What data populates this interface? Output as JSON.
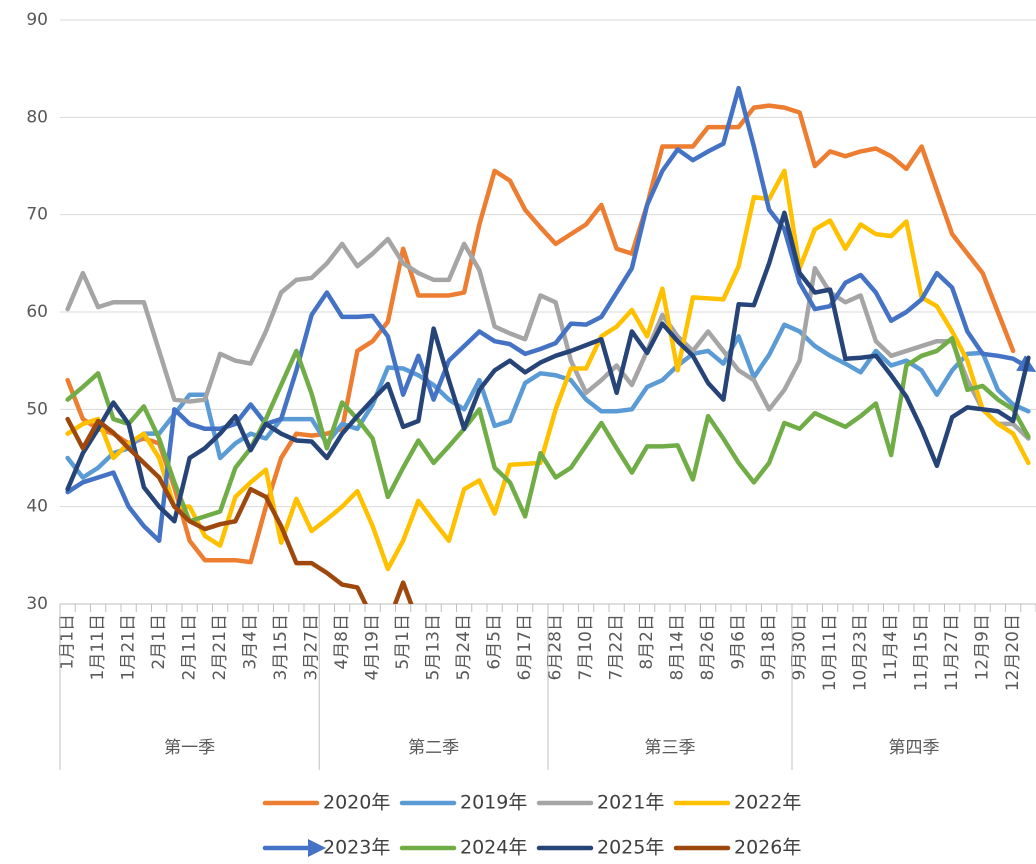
{
  "chart_data": {
    "type": "line",
    "categories": [
      "1月1日",
      null,
      "1月11日",
      null,
      "1月21日",
      null,
      "2月1日",
      null,
      "2月11日",
      null,
      "2月21日",
      null,
      "3月4日",
      null,
      "3月15日",
      null,
      "3月27日",
      null,
      "4月8日",
      null,
      "4月19日",
      null,
      "5月1日",
      null,
      "5月13日",
      null,
      "5月24日",
      null,
      "6月5日",
      null,
      "6月17日",
      null,
      "6月28日",
      null,
      "7月10日",
      null,
      "7月22日",
      null,
      "8月2日",
      null,
      "8月14日",
      null,
      "8月26日",
      null,
      "9月6日",
      null,
      "9月18日",
      null,
      "9月30日",
      null,
      "10月11日",
      null,
      "10月23日",
      null,
      "11月4日",
      null,
      "11月15日",
      null,
      "11月27日",
      null,
      "12月9日",
      null,
      "12月20日",
      null
    ],
    "groups": [
      {
        "label": "第一季",
        "span": 17
      },
      {
        "label": "第二季",
        "span": 15
      },
      {
        "label": "第三季",
        "span": 16
      },
      {
        "label": "第四季",
        "span": 16
      }
    ],
    "ylim": [
      30,
      90
    ],
    "yticks": [
      30,
      40,
      50,
      60,
      70,
      80,
      90
    ],
    "grid": true,
    "legend": "bottom",
    "series": [
      {
        "name": "2020年",
        "color": "#ED7D31",
        "values": [
          53,
          49,
          48,
          47.5,
          46.5,
          47,
          46.5,
          42,
          36.5,
          34.5,
          34.5,
          34.5,
          34.3,
          40,
          45,
          47.5,
          47.3,
          47.5,
          48,
          56,
          57,
          59,
          66.5,
          61.7,
          61.7,
          61.7,
          62,
          69,
          74.5,
          73.5,
          70.5,
          68.7,
          67,
          68,
          69,
          71,
          66.5,
          66,
          71,
          77,
          77,
          77,
          79,
          79,
          79,
          81,
          81.2,
          81,
          80.5,
          75,
          76.5,
          76,
          76.5,
          76.8,
          76,
          74.7,
          77,
          72.5,
          68,
          66,
          64,
          60,
          56,
          null
        ]
      },
      {
        "name": "2019年",
        "color": "#5B9BD5",
        "values": [
          45,
          43,
          44,
          45.5,
          46,
          47.5,
          47.5,
          49.5,
          51.5,
          51.5,
          45,
          46.5,
          47.5,
          47,
          49,
          49,
          49,
          46.5,
          48.5,
          48,
          50.5,
          54.3,
          54.2,
          53.5,
          52.5,
          51,
          50,
          53,
          48.3,
          48.8,
          52.7,
          53.7,
          53.5,
          53,
          51,
          49.8,
          49.8,
          50,
          52.3,
          53,
          54.5,
          55.7,
          56,
          54.7,
          57.5,
          53.3,
          55.6,
          58.7,
          58,
          56.5,
          55.5,
          54.7,
          53.8,
          56,
          54.5,
          55,
          54,
          51.5,
          54,
          55.7,
          55.8,
          52,
          50.5,
          49.8
        ]
      },
      {
        "name": "2021年",
        "color": "#A5A5A5",
        "values": [
          60.3,
          64,
          60.5,
          61,
          61,
          61,
          56,
          51,
          50.8,
          51,
          55.7,
          55,
          54.7,
          58,
          62,
          63.3,
          63.5,
          65,
          67,
          64.7,
          66,
          67.5,
          65,
          64,
          63.3,
          63.3,
          67,
          64.3,
          58.5,
          57.8,
          57.2,
          61.7,
          61,
          55,
          51.7,
          53,
          54.5,
          52.5,
          56,
          59.7,
          57.5,
          56,
          58,
          56,
          54,
          53,
          50,
          52,
          55,
          64.5,
          62,
          61,
          61.7,
          57,
          55.5,
          56,
          56.5,
          57,
          57,
          53,
          50,
          48.5,
          48.5,
          47
        ]
      },
      {
        "name": "2022年",
        "color": "#FFC000",
        "values": [
          47.5,
          48.5,
          49,
          45,
          46.5,
          47.5,
          45,
          40,
          40,
          37,
          36,
          41,
          42.5,
          43.8,
          36.3,
          40.8,
          37.5,
          38.7,
          40,
          41.6,
          38,
          33.6,
          36.5,
          40.6,
          38.5,
          36.5,
          41.8,
          42.7,
          39.3,
          44.3,
          44.4,
          44.5,
          50,
          54.2,
          54.2,
          57.5,
          58.5,
          60.2,
          57.5,
          62.4,
          54,
          61.5,
          61.4,
          61.3,
          64.7,
          71.8,
          71.6,
          74.5,
          64.5,
          68.5,
          69.4,
          66.5,
          69,
          68,
          67.8,
          69.3,
          61.5,
          60.6,
          58,
          55,
          50,
          48.5,
          47.5,
          44.5
        ]
      },
      {
        "name": "2023年",
        "color": "#4472C4",
        "arrow": true,
        "values": [
          41.5,
          42.5,
          43,
          43.5,
          40,
          38,
          36.5,
          50,
          48.5,
          48,
          48,
          48.5,
          50.5,
          48.5,
          49,
          54,
          59.7,
          62,
          59.5,
          59.5,
          59.6,
          57.5,
          51.5,
          55.5,
          51,
          55,
          56.5,
          58,
          57,
          56.7,
          55.7,
          56.2,
          56.8,
          58.8,
          58.7,
          59.5,
          62,
          64.5,
          71,
          74.5,
          76.7,
          75.6,
          76.5,
          77.3,
          83,
          77,
          70.5,
          68.5,
          63,
          60.3,
          60.6,
          63,
          63.8,
          62,
          59.1,
          60,
          61.3,
          64,
          62.5,
          58,
          55.7,
          55.5,
          55.2,
          54.3
        ]
      },
      {
        "name": "2024年",
        "color": "#70AD47",
        "values": [
          51,
          52.3,
          53.7,
          49,
          48.5,
          50.3,
          47,
          42.5,
          38.5,
          39,
          39.5,
          44,
          46,
          49,
          52.5,
          56,
          51.6,
          46,
          50.7,
          49,
          47,
          41,
          44,
          46.8,
          44.5,
          46.2,
          48,
          50,
          44,
          42.5,
          39,
          45.5,
          43,
          44,
          46.3,
          48.6,
          46,
          43.5,
          46.2,
          46.2,
          46.3,
          42.8,
          49.3,
          47,
          44.5,
          42.5,
          44.5,
          48.6,
          48,
          49.6,
          48.9,
          48.2,
          49.3,
          50.6,
          45.3,
          54.5,
          55.5,
          56,
          57.3,
          52,
          52.4,
          51,
          50,
          47.2
        ]
      },
      {
        "name": "2025年",
        "color": "#264478",
        "values": [
          41.8,
          45.5,
          48,
          50.7,
          48.5,
          42,
          40,
          38.5,
          45,
          46,
          47.5,
          49.3,
          45.8,
          48.5,
          47.5,
          46.8,
          46.7,
          45,
          47.5,
          49.3,
          51,
          52.6,
          48.2,
          48.8,
          58.3,
          53,
          48,
          52,
          54,
          55,
          53.8,
          54.8,
          55.5,
          56,
          56.6,
          57.2,
          51.7,
          58,
          55.8,
          58.8,
          57,
          55.5,
          52.7,
          51,
          60.8,
          60.7,
          65,
          70.2,
          64,
          62,
          62.3,
          55.2,
          55.3,
          55.5,
          53.5,
          51.3,
          48,
          44.2,
          49.2,
          50.2,
          50,
          49.8,
          48.8,
          55.3
        ]
      },
      {
        "name": "2026年",
        "color": "#9E480E",
        "values": [
          49,
          46,
          48.8,
          47.6,
          46,
          44.5,
          43,
          40,
          38.5,
          37.7,
          38.2,
          38.5,
          41.8,
          41,
          38,
          34.2,
          34.2,
          33.2,
          32,
          31.7,
          28.5,
          28,
          32.2,
          28,
          null,
          null,
          null,
          null,
          null,
          null,
          null,
          null,
          null,
          null,
          null,
          null,
          null,
          null,
          null,
          null,
          null,
          null,
          null,
          null,
          null,
          null,
          null,
          null,
          null,
          null,
          null,
          null,
          null,
          null,
          null,
          null,
          null,
          null,
          null,
          null,
          null,
          null,
          null,
          null
        ]
      }
    ]
  }
}
